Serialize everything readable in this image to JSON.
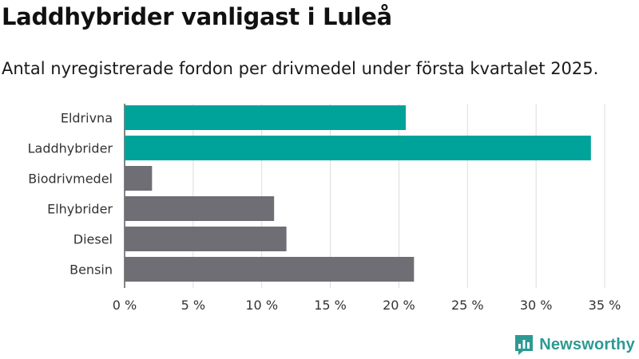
{
  "chart_data": {
    "type": "bar",
    "orientation": "horizontal",
    "title": "Laddhybrider vanligast i Luleå",
    "subtitle": "Antal nyregistrerade fordon per drivmedel under första kvartalet 2025.",
    "categories": [
      "Eldrivna",
      "Laddhybrider",
      "Biodrivmedel",
      "Elhybrider",
      "Diesel",
      "Bensin"
    ],
    "values": [
      20.5,
      34.0,
      2.0,
      10.9,
      11.8,
      21.1
    ],
    "unit": "%",
    "xlim": [
      0,
      35
    ],
    "xticks": [
      0,
      5,
      10,
      15,
      20,
      25,
      30,
      35
    ],
    "xtick_labels": [
      "0 %",
      "5 %",
      "10 %",
      "15 %",
      "20 %",
      "25 %",
      "30 %",
      "35 %"
    ],
    "grid": "vertical",
    "highlight_color": "#00a39a",
    "default_color": "#6f6e75",
    "highlighted_categories": [
      "Eldrivna",
      "Laddhybrider"
    ]
  },
  "branding": {
    "name": "Newsworthy",
    "icon": "newsworthy-logo-icon",
    "color": "#2d9a92"
  }
}
